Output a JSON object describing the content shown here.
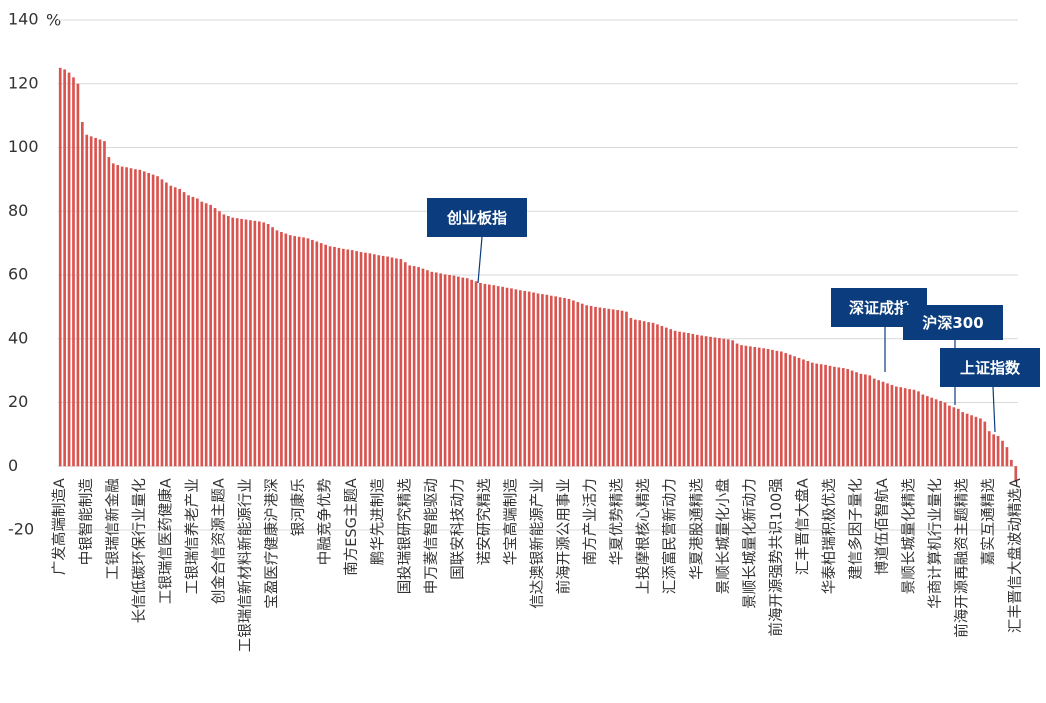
{
  "chart_data": {
    "type": "bar",
    "y_unit": "%",
    "color": "#d9534f",
    "grid": true,
    "ylim": [
      -20,
      140
    ],
    "yticks": [
      -20,
      0,
      20,
      40,
      60,
      80,
      100,
      120,
      140
    ],
    "annotations": [
      "创业板指",
      "深证成指",
      "沪深300",
      "上证指数"
    ],
    "categories": [
      "广发高端制造A",
      null,
      null,
      null,
      null,
      null,
      "中银智能制造",
      null,
      null,
      null,
      null,
      null,
      "工银瑞信新金融",
      null,
      null,
      null,
      null,
      null,
      "长信低碳环保行业量化",
      null,
      null,
      null,
      null,
      null,
      "工银瑞信医药健康A",
      null,
      null,
      null,
      null,
      null,
      "工银瑞信养老产业",
      null,
      null,
      null,
      null,
      null,
      "创金合信资源主题A",
      null,
      null,
      null,
      null,
      null,
      "工银瑞信新材料新能源行业",
      null,
      null,
      null,
      null,
      null,
      "宝盈医疗健康沪港深",
      null,
      null,
      null,
      null,
      null,
      "银河康乐",
      null,
      null,
      null,
      null,
      null,
      "中融竞争优势",
      null,
      null,
      null,
      null,
      null,
      "南方ESG主题A",
      null,
      null,
      null,
      null,
      null,
      "鹏华先进制造",
      null,
      null,
      null,
      null,
      null,
      "国投瑞银研究精选",
      null,
      null,
      null,
      null,
      null,
      "申万菱信智能驱动",
      null,
      null,
      null,
      null,
      null,
      "国联安科技动力",
      null,
      null,
      null,
      null,
      null,
      "诺安研究精选",
      null,
      null,
      null,
      null,
      null,
      "华宝高端制造",
      null,
      null,
      null,
      null,
      null,
      "信达澳银新能源产业",
      null,
      null,
      null,
      null,
      null,
      "前海开源公用事业",
      null,
      null,
      null,
      null,
      null,
      "南方产业活力",
      null,
      null,
      null,
      null,
      null,
      "华夏优势精选",
      null,
      null,
      null,
      null,
      null,
      "上投摩根核心精选",
      null,
      null,
      null,
      null,
      null,
      "汇添富民营新动力",
      null,
      null,
      null,
      null,
      null,
      "华夏港股通精选",
      null,
      null,
      null,
      null,
      null,
      "景顺长城量化小盘",
      null,
      null,
      null,
      null,
      null,
      "景顺长城量化新动力",
      null,
      null,
      null,
      null,
      null,
      "前海开源强势共识100强",
      null,
      null,
      null,
      null,
      null,
      "汇丰晋信大盘A",
      null,
      null,
      null,
      null,
      null,
      "华泰柏瑞积极优选",
      null,
      null,
      null,
      null,
      null,
      "建信多因子量化",
      null,
      null,
      null,
      null,
      null,
      "博道伍佰智航A",
      null,
      null,
      null,
      null,
      null,
      "景顺长城量化精选",
      null,
      null,
      null,
      null,
      null,
      "华商计算机行业量化",
      null,
      null,
      null,
      null,
      null,
      "前海开源再融资主题精选",
      null,
      null,
      null,
      null,
      null,
      "嘉实互通精选",
      null,
      null,
      null,
      null,
      null,
      "汇丰晋信大盘波动精选A"
    ],
    "values": [
      125,
      124.5,
      123.5,
      122,
      120,
      108,
      104,
      103.5,
      103,
      102.5,
      102,
      97,
      95,
      94.5,
      94,
      93.8,
      93.5,
      93.2,
      93,
      92.5,
      92,
      91.5,
      91,
      90,
      89,
      88,
      87.5,
      87,
      86,
      85,
      84.5,
      84,
      83,
      82.5,
      82,
      81,
      80,
      79,
      78.5,
      78,
      77.8,
      77.6,
      77.4,
      77.2,
      77,
      76.8,
      76.5,
      76,
      75,
      74,
      73.5,
      73,
      72.5,
      72.2,
      72,
      71.8,
      71.5,
      71,
      70.5,
      70,
      69.5,
      69,
      68.8,
      68.5,
      68.2,
      68,
      67.8,
      67.5,
      67.2,
      67,
      66.8,
      66.5,
      66.2,
      66,
      65.8,
      65.5,
      65.2,
      65,
      64,
      63,
      62.8,
      62.5,
      62,
      61.5,
      61,
      60.8,
      60.5,
      60.2,
      60,
      59.8,
      59.5,
      59.2,
      59,
      58.5,
      58,
      57.5,
      57.2,
      57,
      56.8,
      56.5,
      56.3,
      56,
      55.8,
      55.5,
      55.2,
      55,
      54.8,
      54.5,
      54.2,
      54,
      53.8,
      53.5,
      53.3,
      53,
      52.8,
      52.5,
      52,
      51.5,
      51,
      50.5,
      50.3,
      50,
      49.8,
      49.6,
      49.4,
      49.2,
      49,
      48.8,
      48.5,
      46.5,
      46,
      45.8,
      45.5,
      45.2,
      45,
      44.5,
      44,
      43.5,
      43,
      42.5,
      42.2,
      42,
      41.8,
      41.5,
      41.2,
      41,
      40.8,
      40.6,
      40.4,
      40.2,
      40,
      39.8,
      39.5,
      38.5,
      38,
      37.8,
      37.6,
      37.4,
      37.2,
      37,
      36.8,
      36.5,
      36.2,
      36,
      35.5,
      35,
      34.5,
      34,
      33.5,
      33,
      32.5,
      32.2,
      32,
      31.8,
      31.5,
      31.2,
      31,
      30.8,
      30.5,
      30,
      29.5,
      29,
      28.8,
      28.5,
      27.5,
      27,
      26.5,
      26,
      25.5,
      25,
      24.8,
      24.5,
      24.2,
      24,
      23.5,
      22.5,
      22,
      21.5,
      21,
      20.5,
      20,
      19,
      18.5,
      18,
      17,
      16.5,
      16,
      15.5,
      15,
      14,
      11,
      10,
      9.5,
      8,
      6,
      2,
      -5
    ]
  }
}
